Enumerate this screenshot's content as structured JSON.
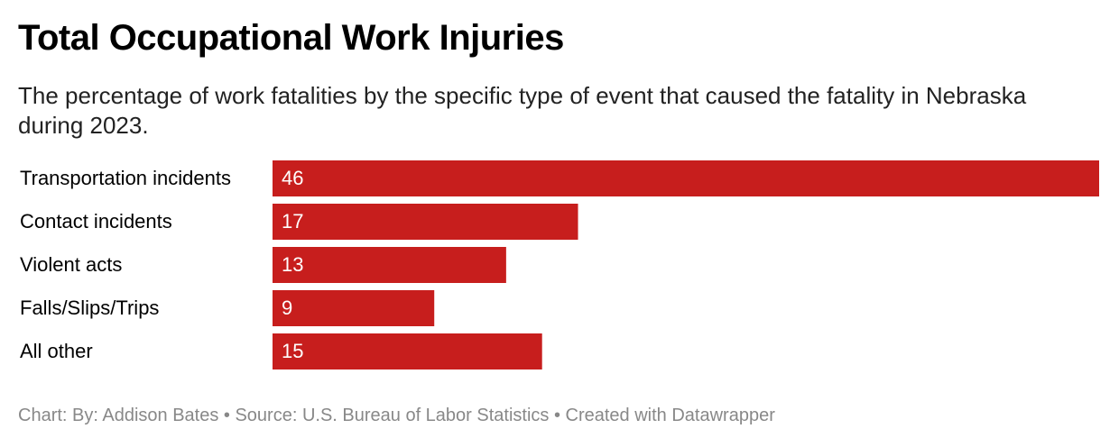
{
  "chart_data": {
    "type": "bar",
    "orientation": "horizontal",
    "title": "Total Occupational Work Injuries",
    "subtitle": "The percentage of work fatalities by the specific type of event that caused the fatality in Nebraska during 2023.",
    "categories": [
      "Transportation incidents",
      "Contact incidents",
      "Violent acts",
      "Falls/Slips/Trips",
      "All other"
    ],
    "values": [
      46,
      17,
      13,
      9,
      15
    ],
    "color": "#c71e1d",
    "footer": "Chart: By: Addison Bates • Source: U.S. Bureau of Labor Statistics • Created with Datawrapper"
  }
}
